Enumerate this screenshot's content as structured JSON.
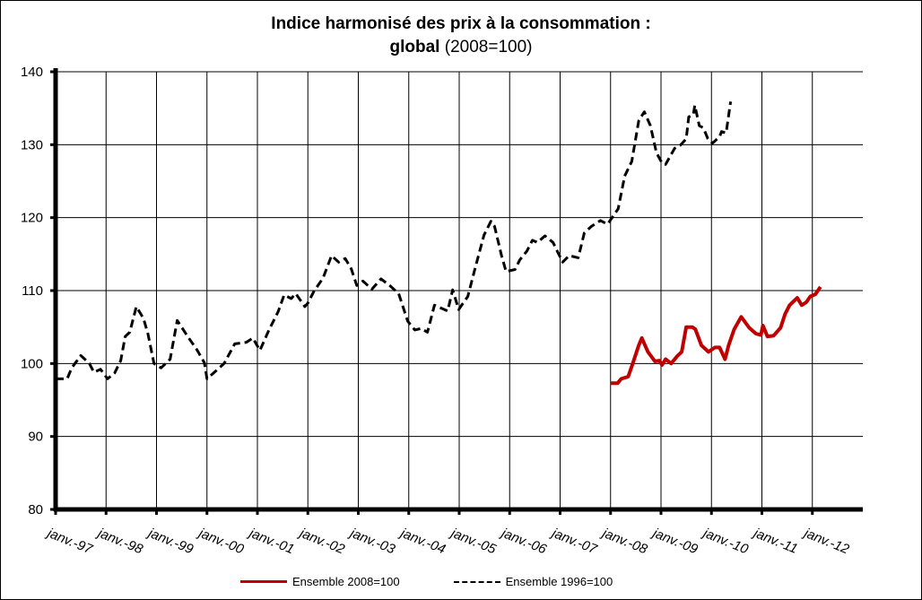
{
  "chart_data": {
    "type": "line",
    "title_line1": "Indice harmonisé des prix à la consommation :",
    "title_line2_bold": "global",
    "title_line2_rest": "(2008=100)",
    "xlabel": "",
    "ylabel": "",
    "ylim": [
      80,
      140
    ],
    "yticks": [
      80,
      90,
      100,
      110,
      120,
      130,
      140
    ],
    "xlim": [
      1997,
      2013
    ],
    "xticks": [
      "janv.-97",
      "janv.-98",
      "janv.-99",
      "janv.-00",
      "janv.-01",
      "janv.-02",
      "janv.-03",
      "janv.-04",
      "janv.-05",
      "janv.-06",
      "janv.-07",
      "janv.-08",
      "janv.-09",
      "janv.-10",
      "janv.-11",
      "janv.-12"
    ],
    "grid": true,
    "legend_position": "bottom",
    "series": [
      {
        "name": "Ensemble 2008=100",
        "color": "#c00000",
        "style": "solid",
        "x": [
          2008.0,
          2008.14,
          2008.21,
          2008.35,
          2008.44,
          2008.56,
          2008.62,
          2008.74,
          2008.88,
          2008.97,
          2009.02,
          2009.09,
          2009.2,
          2009.32,
          2009.41,
          2009.5,
          2009.62,
          2009.68,
          2009.8,
          2009.94,
          2010.07,
          2010.16,
          2010.27,
          2010.34,
          2010.45,
          2010.59,
          2010.75,
          2010.88,
          2010.98,
          2011.02,
          2011.11,
          2011.23,
          2011.37,
          2011.46,
          2011.55,
          2011.7,
          2011.79,
          2011.88,
          2011.96,
          2012.06,
          2012.16
        ],
        "values": [
          97.3,
          97.3,
          97.9,
          98.2,
          100.0,
          102.5,
          103.5,
          101.6,
          100.3,
          100.4,
          99.8,
          100.6,
          100.0,
          101.0,
          101.6,
          105.0,
          105.0,
          104.7,
          102.5,
          101.6,
          102.2,
          102.2,
          100.6,
          102.5,
          104.7,
          106.4,
          104.9,
          104.1,
          103.9,
          105.2,
          103.7,
          103.8,
          104.9,
          106.8,
          108.0,
          109.0,
          108.0,
          108.4,
          109.2,
          109.5,
          110.5
        ]
      },
      {
        "name": "Ensemble 1996=100",
        "color": "#000000",
        "style": "dashed",
        "x": [
          1997.0,
          1997.23,
          1997.32,
          1997.5,
          1997.67,
          1997.76,
          1997.89,
          1998.03,
          1998.17,
          1998.29,
          1998.38,
          1998.47,
          1998.6,
          1998.74,
          1998.83,
          1998.95,
          1999.09,
          1999.27,
          1999.41,
          1999.63,
          1999.8,
          1999.95,
          2000.0,
          2000.34,
          2000.55,
          2000.78,
          2000.91,
          2001.05,
          2001.23,
          2001.41,
          2001.53,
          2001.67,
          2001.76,
          2001.94,
          2002.0,
          2002.12,
          2002.3,
          2002.47,
          2002.61,
          2002.74,
          2002.86,
          2002.97,
          2003.09,
          2003.27,
          2003.45,
          2003.62,
          2003.8,
          2003.98,
          2004.12,
          2004.24,
          2004.37,
          2004.51,
          2004.77,
          2004.87,
          2004.99,
          2005.17,
          2005.31,
          2005.49,
          2005.63,
          2005.7,
          2005.84,
          2005.93,
          2006.11,
          2006.2,
          2006.34,
          2006.45,
          2006.55,
          2006.7,
          2006.86,
          2007.05,
          2007.18,
          2007.36,
          2007.48,
          2007.62,
          2007.8,
          2007.94,
          2008.15,
          2008.28,
          2008.42,
          2008.56,
          2008.67,
          2008.79,
          2008.91,
          2009.02,
          2009.09,
          2009.27,
          2009.38,
          2009.5,
          2009.55,
          2009.64,
          2009.67,
          2009.76,
          2009.84,
          2009.93,
          2010.02,
          2010.16,
          2010.2,
          2010.29,
          2010.38
        ],
        "values": [
          97.9,
          97.9,
          99.4,
          101.1,
          100.0,
          98.8,
          99.2,
          97.9,
          98.7,
          100.4,
          103.7,
          104.3,
          107.8,
          106.2,
          104.1,
          100.0,
          99.4,
          100.6,
          105.9,
          103.6,
          101.9,
          100.1,
          97.9,
          100.0,
          102.7,
          102.9,
          103.5,
          101.8,
          104.6,
          107.1,
          109.4,
          108.9,
          109.6,
          107.8,
          108.3,
          109.9,
          111.7,
          114.8,
          113.9,
          114.4,
          113.0,
          110.7,
          111.3,
          110.2,
          111.6,
          110.7,
          109.6,
          105.8,
          104.6,
          104.8,
          104.3,
          108.0,
          107.2,
          110.1,
          107.4,
          109.2,
          112.9,
          117.6,
          119.5,
          118.8,
          114.8,
          112.6,
          112.9,
          114.2,
          115.4,
          116.9,
          116.6,
          117.5,
          116.6,
          113.9,
          114.8,
          114.5,
          117.9,
          118.8,
          119.6,
          119.1,
          121.2,
          125.7,
          127.7,
          133.3,
          134.5,
          132.6,
          128.9,
          127.5,
          127.3,
          129.5,
          129.9,
          130.8,
          133.8,
          134.1,
          135.4,
          132.6,
          132.3,
          130.8,
          130.2,
          131.1,
          131.8,
          131.6,
          135.9
        ]
      }
    ]
  }
}
